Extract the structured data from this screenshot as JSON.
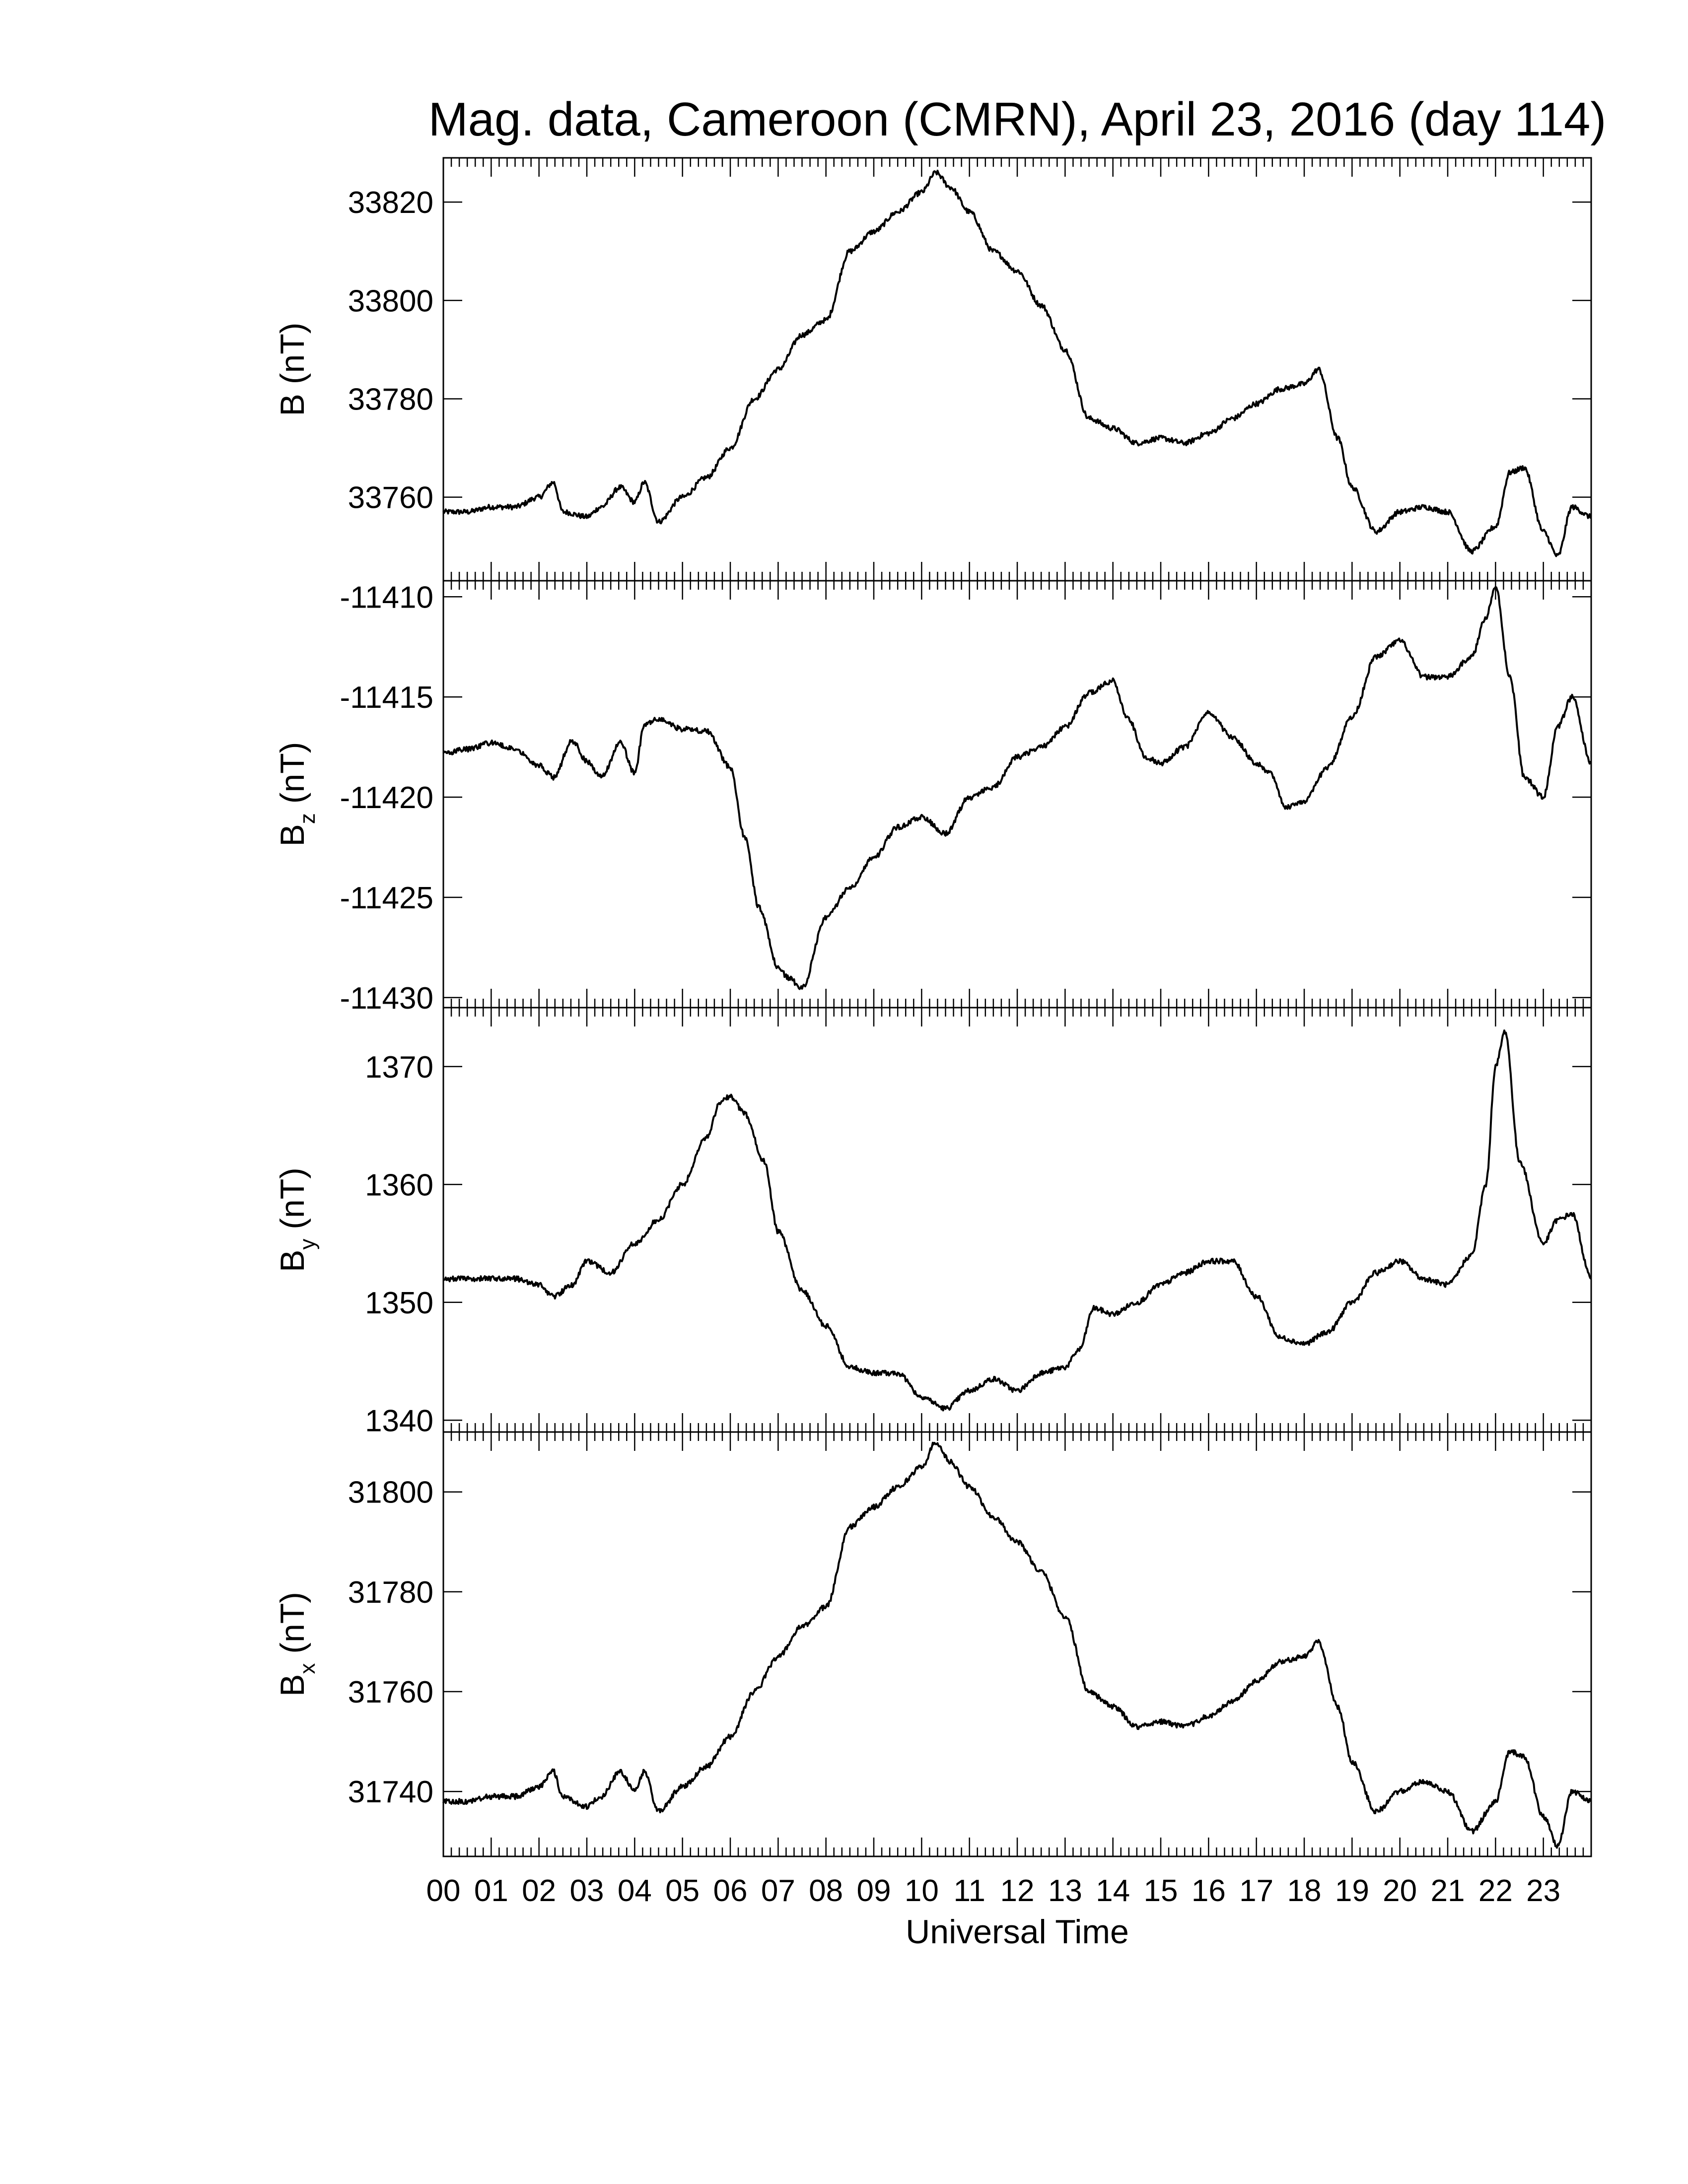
{
  "figure": {
    "title": "Mag. data, Cameroon (CMRN), April 23, 2016 (day 114)",
    "xlabel": "Universal Time",
    "line_color": "#000000",
    "background_color": "#ffffff"
  },
  "chart_data": [
    {
      "type": "line",
      "ylabel": "B (nT)",
      "ylabel_main": "B",
      "ylabel_sub": "",
      "ylabel_unit": " (nT)",
      "xlim": [
        0,
        24
      ],
      "ylim": [
        33743,
        33829
      ],
      "yticks": [
        33760,
        33780,
        33800,
        33820
      ],
      "ytick_labels": [
        "33760",
        "33780",
        "33800",
        "33820"
      ],
      "series": [
        {
          "x": [
            0,
            0.5,
            1.0,
            1.5,
            2.0,
            2.3,
            2.5,
            3.0,
            3.3,
            3.7,
            4.0,
            4.2,
            4.5,
            5.0,
            5.5,
            6.0,
            6.5,
            7.0,
            7.5,
            8.0,
            8.5,
            9.0,
            9.5,
            10.0,
            10.3,
            10.6,
            11.0,
            11.5,
            12.0,
            12.5,
            13.0,
            13.5,
            14.0,
            14.5,
            15.0,
            15.5,
            16.0,
            16.5,
            17.0,
            17.5,
            18.0,
            18.3,
            18.7,
            19.0,
            19.5,
            20.0,
            20.5,
            21.0,
            21.5,
            22.0,
            22.3,
            22.6,
            23.0,
            23.3,
            23.6,
            24.0
          ],
          "y": [
            33757,
            33757,
            33758,
            33758,
            33760,
            33763,
            33757,
            33756,
            33758,
            33762,
            33759,
            33763,
            33755,
            33760,
            33764,
            33770,
            33780,
            33786,
            33793,
            33796,
            33810,
            33814,
            33818,
            33822,
            33826,
            33823,
            33818,
            33810,
            33806,
            33799,
            33790,
            33776,
            33774,
            33771,
            33772,
            33771,
            33773,
            33776,
            33779,
            33782,
            33783,
            33786,
            33772,
            33762,
            33753,
            33757,
            33758,
            33757,
            33749,
            33754,
            33765,
            33766,
            33753,
            33748,
            33758,
            33756
          ]
        }
      ]
    },
    {
      "type": "line",
      "ylabel": "Bz (nT)",
      "ylabel_main": "B",
      "ylabel_sub": "z",
      "ylabel_unit": " (nT)",
      "xlim": [
        0,
        24
      ],
      "ylim": [
        -11430.5,
        -11409.2
      ],
      "yticks": [
        -11430,
        -11425,
        -11420,
        -11415,
        -11410
      ],
      "ytick_labels": [
        "-11430",
        "-11425",
        "-11420",
        "-11415",
        "-11410"
      ],
      "series": [
        {
          "x": [
            0,
            0.5,
            1.0,
            1.5,
            2.0,
            2.3,
            2.7,
            3.0,
            3.3,
            3.7,
            4.0,
            4.2,
            4.5,
            5.0,
            5.5,
            6.0,
            6.3,
            6.6,
            7.0,
            7.2,
            7.5,
            8.0,
            8.5,
            9.0,
            9.5,
            10.0,
            10.5,
            11.0,
            11.5,
            12.0,
            12.5,
            13.0,
            13.5,
            14.0,
            14.3,
            14.7,
            15.0,
            15.5,
            16.0,
            16.5,
            17.0,
            17.3,
            17.6,
            18.0,
            18.5,
            19.0,
            19.5,
            20.0,
            20.5,
            21.0,
            21.5,
            21.8,
            22.0,
            22.3,
            22.6,
            23.0,
            23.3,
            23.6,
            24.0
          ],
          "y": [
            -11417.8,
            -11417.6,
            -11417.3,
            -11417.6,
            -11418.4,
            -11419.0,
            -11417.2,
            -11418.2,
            -11419.0,
            -11417.3,
            -11418.8,
            -11416.4,
            -11416.1,
            -11416.6,
            -11416.7,
            -11418.5,
            -11422.0,
            -11425.5,
            -11428.5,
            -11429.0,
            -11429.5,
            -11426.0,
            -11424.5,
            -11423.0,
            -11421.5,
            -11421.0,
            -11421.8,
            -11420.0,
            -11419.5,
            -11418.0,
            -11417.5,
            -11416.5,
            -11414.8,
            -11414.2,
            -11416.0,
            -11418.0,
            -11418.3,
            -11417.5,
            -11415.8,
            -11417.0,
            -11418.3,
            -11418.8,
            -11420.5,
            -11420.2,
            -11418.5,
            -11416.0,
            -11413.0,
            -11412.2,
            -11414.0,
            -11414.0,
            -11413.0,
            -11411.0,
            -11409.5,
            -11414.0,
            -11419.0,
            -11420.0,
            -11416.5,
            -11415.0,
            -11418.3
          ]
        }
      ]
    },
    {
      "type": "line",
      "ylabel": "By (nT)",
      "ylabel_main": "B",
      "ylabel_sub": "y",
      "ylabel_unit": " (nT)",
      "xlim": [
        0,
        24
      ],
      "ylim": [
        1339,
        1375
      ],
      "yticks": [
        1340,
        1350,
        1360,
        1370
      ],
      "ytick_labels": [
        "1340",
        "1350",
        "1360",
        "1370"
      ],
      "series": [
        {
          "x": [
            0,
            0.5,
            1.0,
            1.5,
            2.0,
            2.3,
            2.7,
            3.0,
            3.5,
            4.0,
            4.5,
            5.0,
            5.5,
            5.8,
            6.0,
            6.3,
            6.7,
            7.0,
            7.5,
            8.0,
            8.5,
            9.0,
            9.5,
            10.0,
            10.5,
            11.0,
            11.5,
            12.0,
            12.5,
            13.0,
            13.3,
            13.6,
            14.0,
            14.5,
            15.0,
            15.5,
            16.0,
            16.5,
            17.0,
            17.5,
            18.0,
            18.5,
            19.0,
            19.5,
            20.0,
            20.5,
            21.0,
            21.5,
            21.8,
            22.0,
            22.2,
            22.5,
            23.0,
            23.3,
            23.6,
            24.0
          ],
          "y": [
            1352,
            1352,
            1352,
            1352,
            1351.5,
            1350.5,
            1351.5,
            1353.5,
            1352.5,
            1355,
            1357,
            1360,
            1364,
            1367,
            1367.5,
            1366,
            1362,
            1356,
            1351,
            1348,
            1344.5,
            1344,
            1344,
            1342,
            1341,
            1342.5,
            1343.5,
            1342.5,
            1344,
            1344.5,
            1346,
            1349.5,
            1349,
            1350,
            1351.5,
            1352.5,
            1353.5,
            1353.5,
            1350.5,
            1347,
            1346.5,
            1347.5,
            1350,
            1352.5,
            1353.5,
            1352,
            1351.5,
            1354,
            1360,
            1370,
            1373,
            1362,
            1355,
            1357,
            1357.5,
            1352
          ]
        }
      ]
    },
    {
      "type": "line",
      "ylabel": "Bx (nT)",
      "ylabel_main": "B",
      "ylabel_sub": "x",
      "ylabel_unit": " (nT)",
      "xlim": [
        0,
        24
      ],
      "ylim": [
        31727,
        31812
      ],
      "yticks": [
        31740,
        31760,
        31780,
        31800
      ],
      "ytick_labels": [
        "31740",
        "31760",
        "31780",
        "31800"
      ],
      "series": [
        {
          "x": [
            0,
            0.5,
            1.0,
            1.5,
            2.0,
            2.3,
            2.5,
            3.0,
            3.3,
            3.7,
            4.0,
            4.2,
            4.5,
            5.0,
            5.5,
            6.0,
            6.5,
            7.0,
            7.5,
            8.0,
            8.5,
            9.0,
            9.5,
            10.0,
            10.3,
            10.6,
            11.0,
            11.5,
            12.0,
            12.5,
            13.0,
            13.5,
            14.0,
            14.5,
            15.0,
            15.5,
            16.0,
            16.5,
            17.0,
            17.5,
            18.0,
            18.3,
            18.7,
            19.0,
            19.5,
            20.0,
            20.5,
            21.0,
            21.5,
            22.0,
            22.3,
            22.6,
            23.0,
            23.3,
            23.6,
            24.0
          ],
          "y": [
            31738,
            31738,
            31739,
            31739,
            31741,
            31744,
            31739,
            31737,
            31739,
            31744,
            31740,
            31744,
            31736,
            31741,
            31745,
            31751,
            31760,
            31767,
            31773,
            31777,
            31793,
            31797,
            31801,
            31805,
            31810,
            31806,
            31801,
            31795,
            31790,
            31784,
            31775,
            31760,
            31757,
            31753,
            31754,
            31753,
            31755,
            31758,
            31762,
            31766,
            31767,
            31770,
            31757,
            31746,
            31736,
            31740,
            31742,
            31740,
            31732,
            31738,
            31748,
            31747,
            31735,
            31729,
            31740,
            31738
          ]
        }
      ]
    }
  ],
  "x_axis": {
    "tick_labels": [
      "00",
      "01",
      "02",
      "03",
      "04",
      "05",
      "06",
      "07",
      "08",
      "09",
      "10",
      "11",
      "12",
      "13",
      "14",
      "15",
      "16",
      "17",
      "18",
      "19",
      "20",
      "21",
      "22",
      "23"
    ]
  }
}
